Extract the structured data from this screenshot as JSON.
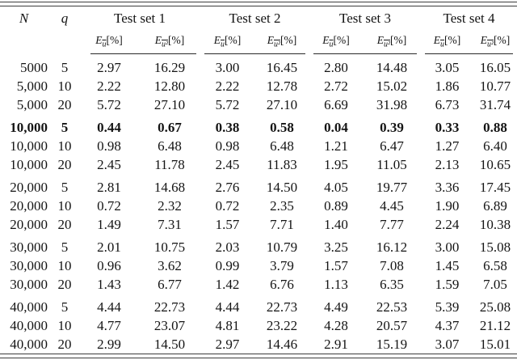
{
  "table": {
    "headers": {
      "n": "N",
      "q": "q",
      "test_sets": [
        "Test set 1",
        "Test set 2",
        "Test set 3",
        "Test set 4"
      ],
      "metric_u": {
        "prefix": "E",
        "sub": "u",
        "suffix": "[%]"
      },
      "metric_u2": {
        "prefix": "E",
        "sub": "u²",
        "suffix": "[%]"
      }
    },
    "groups": [
      {
        "rows": [
          {
            "n": "5000",
            "q": "5",
            "bold": false,
            "values": [
              "2.97",
              "16.29",
              "3.00",
              "16.45",
              "2.80",
              "14.48",
              "3.05",
              "16.05"
            ]
          },
          {
            "n": "5,000",
            "q": "10",
            "bold": false,
            "values": [
              "2.22",
              "12.80",
              "2.22",
              "12.78",
              "2.72",
              "15.02",
              "1.86",
              "10.77"
            ]
          },
          {
            "n": "5,000",
            "q": "20",
            "bold": false,
            "values": [
              "5.72",
              "27.10",
              "5.72",
              "27.10",
              "6.69",
              "31.98",
              "6.73",
              "31.74"
            ]
          }
        ]
      },
      {
        "rows": [
          {
            "n": "10,000",
            "q": "5",
            "bold": true,
            "values": [
              "0.44",
              "0.67",
              "0.38",
              "0.58",
              "0.04",
              "0.39",
              "0.33",
              "0.88"
            ]
          },
          {
            "n": "10,000",
            "q": "10",
            "bold": false,
            "values": [
              "0.98",
              "6.48",
              "0.98",
              "6.48",
              "1.21",
              "6.47",
              "1.27",
              "6.40"
            ]
          },
          {
            "n": "10,000",
            "q": "20",
            "bold": false,
            "values": [
              "2.45",
              "11.78",
              "2.45",
              "11.83",
              "1.95",
              "11.05",
              "2.13",
              "10.65"
            ]
          }
        ]
      },
      {
        "rows": [
          {
            "n": "20,000",
            "q": "5",
            "bold": false,
            "values": [
              "2.81",
              "14.68",
              "2.76",
              "14.50",
              "4.05",
              "19.77",
              "3.36",
              "17.45"
            ]
          },
          {
            "n": "20,000",
            "q": "10",
            "bold": false,
            "values": [
              "0.72",
              "2.32",
              "0.72",
              "2.35",
              "0.89",
              "4.45",
              "1.90",
              "6.89"
            ]
          },
          {
            "n": "20,000",
            "q": "20",
            "bold": false,
            "values": [
              "1.49",
              "7.31",
              "1.57",
              "7.71",
              "1.40",
              "7.77",
              "2.24",
              "10.38"
            ]
          }
        ]
      },
      {
        "rows": [
          {
            "n": "30,000",
            "q": "5",
            "bold": false,
            "values": [
              "2.01",
              "10.75",
              "2.03",
              "10.79",
              "3.25",
              "16.12",
              "3.00",
              "15.08"
            ]
          },
          {
            "n": "30,000",
            "q": "10",
            "bold": false,
            "values": [
              "0.96",
              "3.62",
              "0.99",
              "3.79",
              "1.57",
              "7.08",
              "1.45",
              "6.58"
            ]
          },
          {
            "n": "30,000",
            "q": "20",
            "bold": false,
            "values": [
              "1.43",
              "6.77",
              "1.42",
              "6.76",
              "1.13",
              "6.35",
              "1.59",
              "7.05"
            ]
          }
        ]
      },
      {
        "rows": [
          {
            "n": "40,000",
            "q": "5",
            "bold": false,
            "values": [
              "4.44",
              "22.73",
              "4.44",
              "22.73",
              "4.49",
              "22.53",
              "5.39",
              "25.08"
            ]
          },
          {
            "n": "40,000",
            "q": "10",
            "bold": false,
            "values": [
              "4.77",
              "23.07",
              "4.81",
              "23.22",
              "4.28",
              "20.57",
              "4.37",
              "21.12"
            ]
          },
          {
            "n": "40,000",
            "q": "20",
            "bold": false,
            "values": [
              "2.99",
              "14.50",
              "2.97",
              "14.46",
              "2.91",
              "15.19",
              "3.07",
              "15.01"
            ]
          }
        ]
      }
    ]
  }
}
